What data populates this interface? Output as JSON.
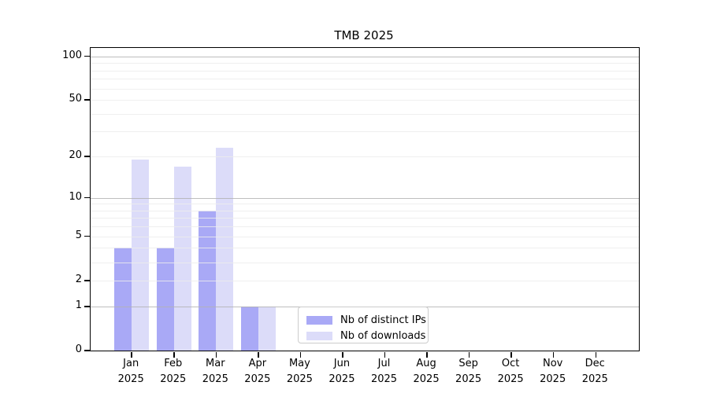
{
  "chart_data": {
    "type": "bar",
    "title": "TMB 2025",
    "categories": [
      "Jan 2025",
      "Feb 2025",
      "Mar 2025",
      "Apr 2025",
      "May 2025",
      "Jun 2025",
      "Jul 2025",
      "Aug 2025",
      "Sep 2025",
      "Oct 2025",
      "Nov 2025",
      "Dec 2025"
    ],
    "series": [
      {
        "name": "Nb of distinct IPs",
        "color": "#a9a9f6",
        "values": [
          4,
          4,
          8,
          1,
          0,
          0,
          0,
          0,
          0,
          0,
          0,
          0
        ]
      },
      {
        "name": "Nb of downloads",
        "color": "#dcdcf9",
        "values": [
          19,
          17,
          23,
          1,
          0,
          0,
          0,
          0,
          0,
          0,
          0,
          0
        ]
      }
    ],
    "yscale": "log1p",
    "ylim": [
      0,
      100
    ],
    "yticks": [
      0,
      1,
      2,
      5,
      10,
      20,
      50,
      100
    ],
    "major_gridlines": [
      1,
      10,
      100
    ],
    "minor_gridlines": [
      2,
      3,
      4,
      5,
      6,
      7,
      8,
      9,
      20,
      30,
      40,
      50,
      60,
      70,
      80,
      90
    ],
    "xlabel": "",
    "ylabel": "",
    "grid": true,
    "legend_position": "lower-center",
    "colors": {
      "background": "#ffffff",
      "axis": "#000000",
      "major_grid": "#b3b3b3",
      "minor_grid": "#ececec",
      "legend_border": "#cccccc"
    }
  }
}
